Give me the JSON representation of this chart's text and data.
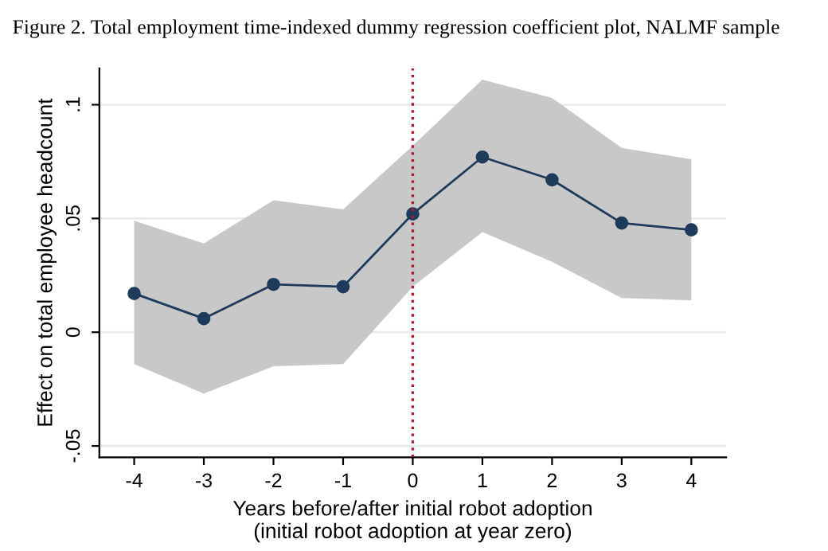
{
  "chart_data": {
    "type": "line",
    "title": "Figure 2. Total employment time-indexed dummy regression coefficient plot, NALMF sample",
    "xlabel": "Years before/after initial robot adoption\n(initial robot adoption at year zero)",
    "ylabel": "Effect on total employee headcount",
    "x": [
      -4,
      -3,
      -2,
      -1,
      0,
      1,
      2,
      3,
      4
    ],
    "series": [
      {
        "color": "#1f3b5c",
        "values": [
          0.017,
          0.006,
          0.021,
          0.02,
          0.052,
          0.077,
          0.067,
          0.048,
          0.045
        ],
        "lower": [
          -0.014,
          -0.027,
          -0.015,
          -0.014,
          0.02,
          0.044,
          0.031,
          0.015,
          0.014
        ],
        "upper": [
          0.049,
          0.039,
          0.058,
          0.054,
          0.082,
          0.111,
          0.103,
          0.081,
          0.076
        ]
      }
    ],
    "marker": "circle",
    "line_style": "solid",
    "grid": "y",
    "xlim": [
      -4.5,
      4.5
    ],
    "xticks": [
      -4,
      -3,
      -2,
      -1,
      0,
      1,
      2,
      3,
      4
    ],
    "ylim": [
      -0.055,
      0.116
    ],
    "yticks": [
      {
        "value": -0.05,
        "label": "-.05"
      },
      0,
      {
        "value": 0.05,
        "label": ".05"
      },
      {
        "value": 0.1,
        "label": ".1"
      }
    ],
    "ref_lines": [
      {
        "axis": "x",
        "value": 0,
        "color": "#a0202c",
        "line_style": "dotted"
      }
    ]
  }
}
